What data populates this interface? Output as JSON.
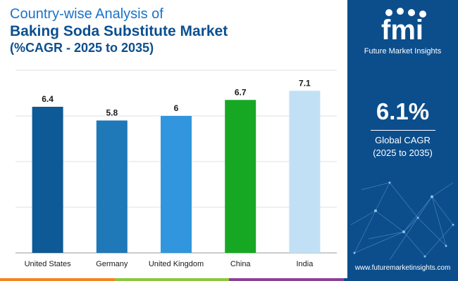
{
  "title": {
    "line1": "Country-wise Analysis of",
    "line2": "Baking Soda Substitute Market",
    "line3": "(%CAGR - 2025 to 2035)"
  },
  "chart_data": {
    "type": "bar",
    "title": "Country-wise Analysis of Baking Soda Substitute Market (%CAGR - 2025 to 2035)",
    "categories": [
      "United States",
      "Germany",
      "United Kingdom",
      "China",
      "India"
    ],
    "values": [
      6.4,
      5.8,
      6,
      6.7,
      7.1
    ],
    "value_labels": [
      "6.4",
      "5.8",
      "6",
      "6.7",
      "7.1"
    ],
    "colors": [
      "#0d5a96",
      "#1f78b8",
      "#3196dd",
      "#17a823",
      "#c2e0f5"
    ],
    "xlabel": "",
    "ylabel": "",
    "ylim": [
      0,
      8
    ],
    "grid": true
  },
  "sidebar": {
    "logo_text": "Future Market Insights",
    "stat_value": "6.1%",
    "stat_label_line1": "Global CAGR",
    "stat_label_line2": "(2025 to 2035)",
    "website": "www.futuremarketinsights.com"
  },
  "bottom_strip_colors": [
    "#f58220",
    "#8cc63f",
    "#8e3f97",
    "#0c4e8c"
  ]
}
